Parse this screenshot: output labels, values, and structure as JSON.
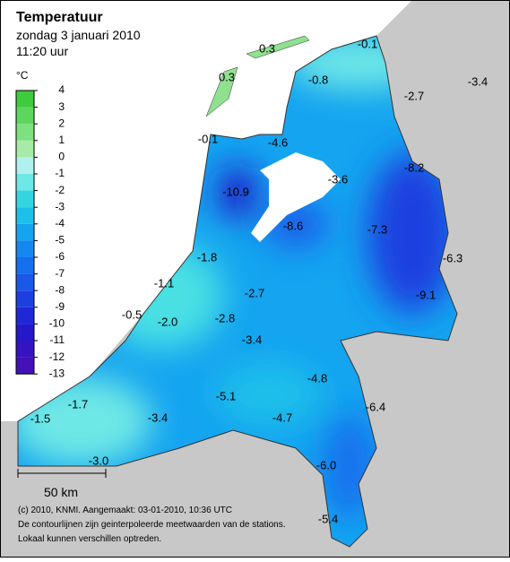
{
  "header": {
    "title": "Temperatuur",
    "date": "zondag 3 januari 2010",
    "time": "11:20 uur"
  },
  "legend": {
    "unit": "°C",
    "ticks": [
      4,
      3,
      2,
      1,
      0,
      -1,
      -2,
      -3,
      -4,
      -5,
      -6,
      -7,
      -8,
      -9,
      -10,
      -11,
      -12,
      -13
    ],
    "colors": [
      "#3dcc3d",
      "#5cd65c",
      "#7ee07e",
      "#a6eba6",
      "#b0f0ee",
      "#6ee8e6",
      "#33d6e0",
      "#1ec0ea",
      "#14a4f0",
      "#1488f0",
      "#1670ee",
      "#1a58ea",
      "#1c40e0",
      "#1e28d6",
      "#2418c8",
      "#3414c0",
      "#4410b8"
    ]
  },
  "stations": [
    "0.3",
    "-0.1",
    "-0.8",
    "-2.7",
    "-3.4",
    "0.3",
    "-0.1",
    "-4.6",
    "-3.6",
    "-8.2",
    "-10.9",
    "-8.6",
    "-7.3",
    "-6.3",
    "-1.8",
    "-1.1",
    "-9.1",
    "-2.7",
    "-0.5",
    "-2.0",
    "-2.8",
    "-3.4",
    "-1.7",
    "-5.1",
    "-4.8",
    "-1.5",
    "-3.4",
    "-4.7",
    "-6.4",
    "-3.0",
    "-6.0",
    "-5.4"
  ],
  "scale_bar": "50 km",
  "credits": [
    "(c) 2010, KNMI. Aangemaakt: 03-01-2010, 10:36 UTC",
    "De contourlijnen zijn geinterpoleerde meetwaarden van de stations.",
    "Lokaal kunnen verschillen optreden."
  ]
}
